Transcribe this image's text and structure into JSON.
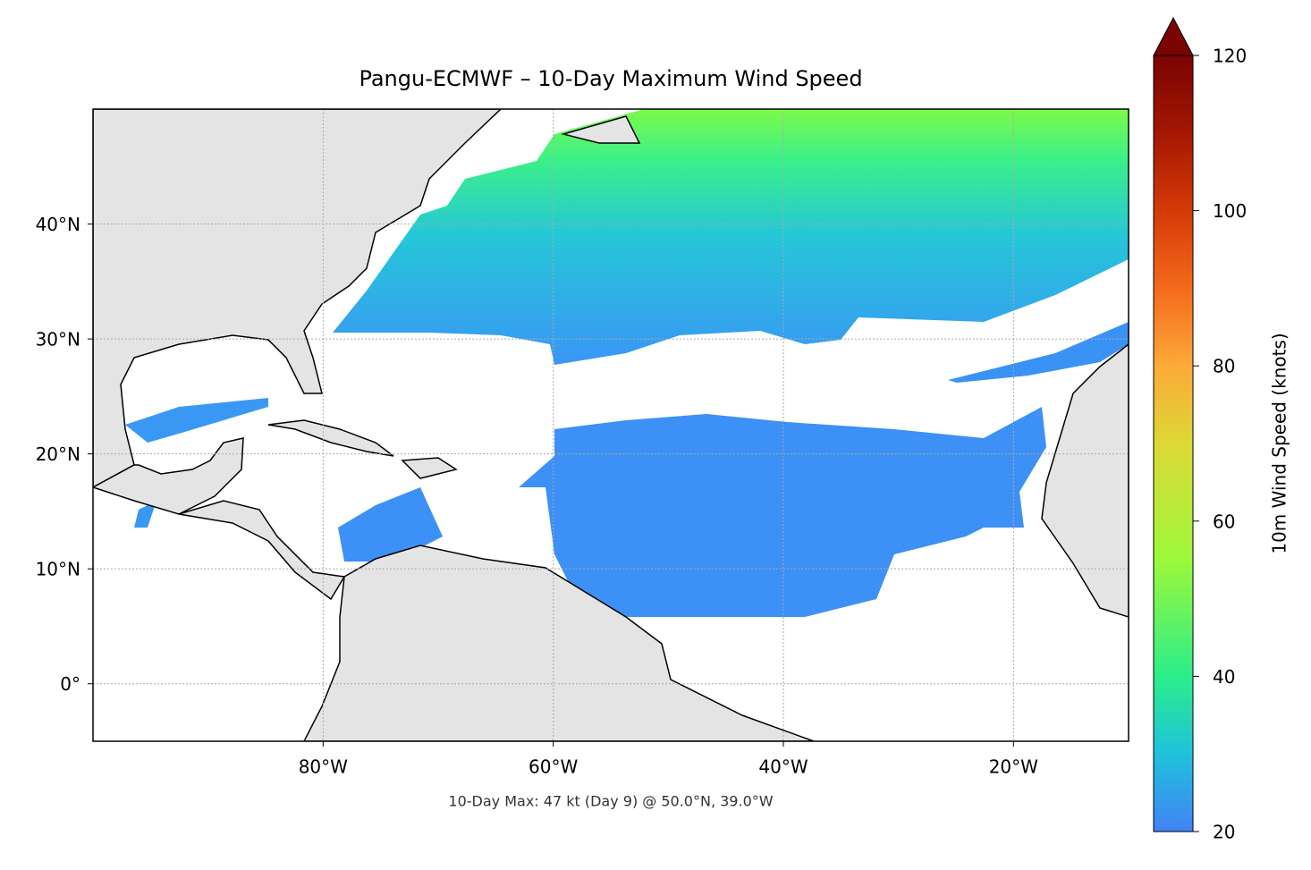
{
  "title": "Pangu-ECMWF – 10-Day Maximum Wind Speed",
  "lon_range": [
    -100,
    -10
  ],
  "lat_range": [
    -5,
    50
  ],
  "lat_ticks": [
    {
      "value": 40,
      "label": "40°N"
    },
    {
      "value": 30,
      "label": "30°N"
    },
    {
      "value": 20,
      "label": "20°N"
    },
    {
      "value": 10,
      "label": "10°N"
    },
    {
      "value": 0,
      "label": "0°"
    }
  ],
  "lon_ticks": [
    {
      "value": -80,
      "label": "80°W"
    },
    {
      "value": -60,
      "label": "60°W"
    },
    {
      "value": -40,
      "label": "40°W"
    },
    {
      "value": -20,
      "label": "20°W"
    }
  ],
  "colorbar": {
    "label": "10m Wind Speed (knots)",
    "lim": [
      20,
      120
    ],
    "ticks": [
      20,
      40,
      60,
      80,
      100,
      120
    ]
  },
  "annotation": "10-Day Max: 47 kt (Day 9) @ 50.0°N, 39.0°W"
}
